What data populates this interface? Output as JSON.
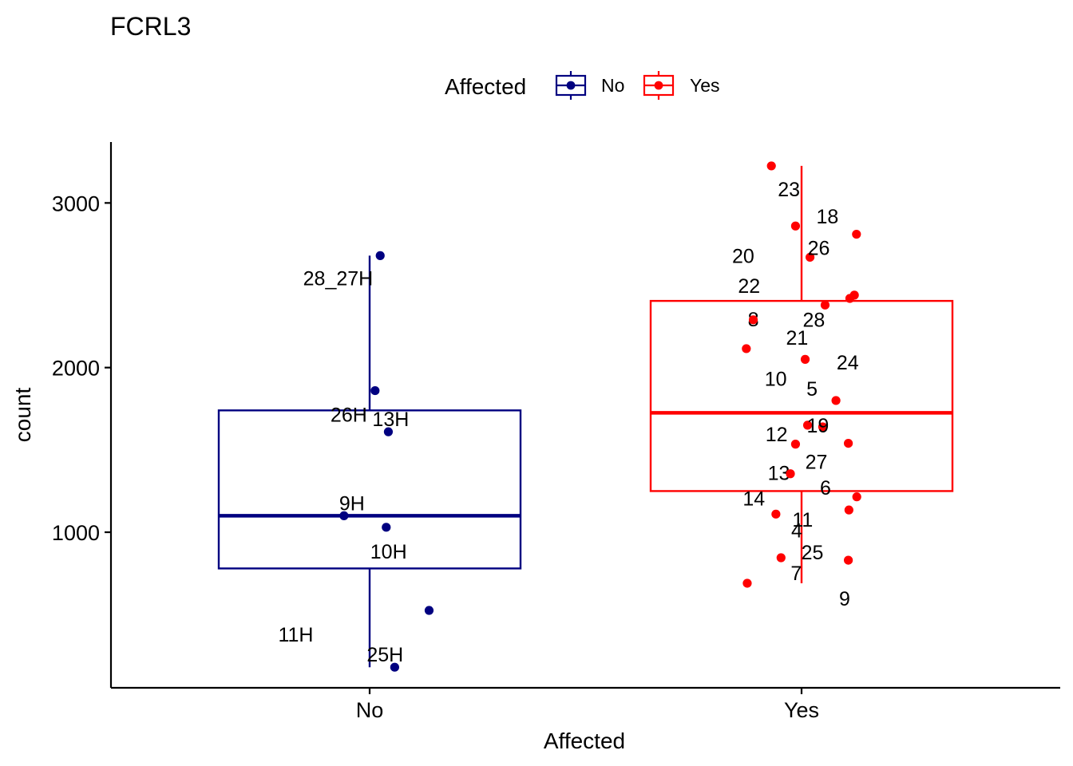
{
  "chart_data": {
    "type": "boxplot",
    "title": "FCRL3",
    "xlabel": "Affected",
    "ylabel": "count",
    "ylim": [
      55,
      3370
    ],
    "yticks": [
      1000,
      2000,
      3000
    ],
    "ytick_labels": [
      "1000",
      "2000",
      "3000"
    ],
    "categories": [
      "No",
      "Yes"
    ],
    "legend": {
      "title": "Affected",
      "position": "top",
      "entries": [
        {
          "label": "No",
          "color": "#000080"
        },
        {
          "label": "Yes",
          "color": "#ff0000"
        }
      ]
    },
    "groups": [
      {
        "name": "No",
        "color": "#000080",
        "box": {
          "min": 180,
          "q1": 780,
          "median": 1100,
          "q3": 1740,
          "max": 2680
        },
        "points": [
          {
            "label": "28_27H",
            "x": 0.035,
            "y": 2680
          },
          {
            "label": "26H",
            "x": 0.018,
            "y": 1860
          },
          {
            "label": "13H",
            "x": 0.062,
            "y": 1610
          },
          {
            "label": "9H",
            "x": -0.085,
            "y": 1100
          },
          {
            "label": "10H",
            "x": 0.055,
            "y": 1030
          },
          {
            "label": "11H",
            "x": 0.197,
            "y": 525
          },
          {
            "label": "25H",
            "x": 0.083,
            "y": 180
          }
        ]
      },
      {
        "name": "Yes",
        "color": "#ff0000",
        "box": {
          "min": 690,
          "q1": 1250,
          "median": 1725,
          "q3": 2405,
          "max": 3225
        },
        "points": [
          {
            "label": "23",
            "x": -0.1,
            "y": 3225
          },
          {
            "label": "18",
            "x": -0.02,
            "y": 2860
          },
          {
            "label": "20",
            "x": 0.182,
            "y": 2810
          },
          {
            "label": "26",
            "x": 0.028,
            "y": 2670
          },
          {
            "label": "22",
            "x": 0.175,
            "y": 2440
          },
          {
            "label": "8",
            "x": 0.16,
            "y": 2420
          },
          {
            "label": "28",
            "x": 0.078,
            "y": 2380
          },
          {
            "label": "21",
            "x": -0.16,
            "y": 2290
          },
          {
            "label": "24",
            "x": -0.183,
            "y": 2115
          },
          {
            "label": "10",
            "x": 0.012,
            "y": 2050
          },
          {
            "label": "5",
            "x": 0.114,
            "y": 1800
          },
          {
            "label": "12",
            "x": 0.02,
            "y": 1650
          },
          {
            "label": "19",
            "x": 0.07,
            "y": 1640
          },
          {
            "label": "27",
            "x": 0.155,
            "y": 1540
          },
          {
            "label": "13",
            "x": -0.02,
            "y": 1535
          },
          {
            "label": "6",
            "x": -0.037,
            "y": 1355
          },
          {
            "label": "14",
            "x": 0.183,
            "y": 1215
          },
          {
            "label": "11",
            "x": 0.157,
            "y": 1135
          },
          {
            "label": "4",
            "x": -0.085,
            "y": 1110
          },
          {
            "label": "25",
            "x": 0.155,
            "y": 830
          },
          {
            "label": "7",
            "x": -0.068,
            "y": 845
          },
          {
            "label": "9",
            "x": -0.18,
            "y": 690
          }
        ]
      }
    ]
  }
}
